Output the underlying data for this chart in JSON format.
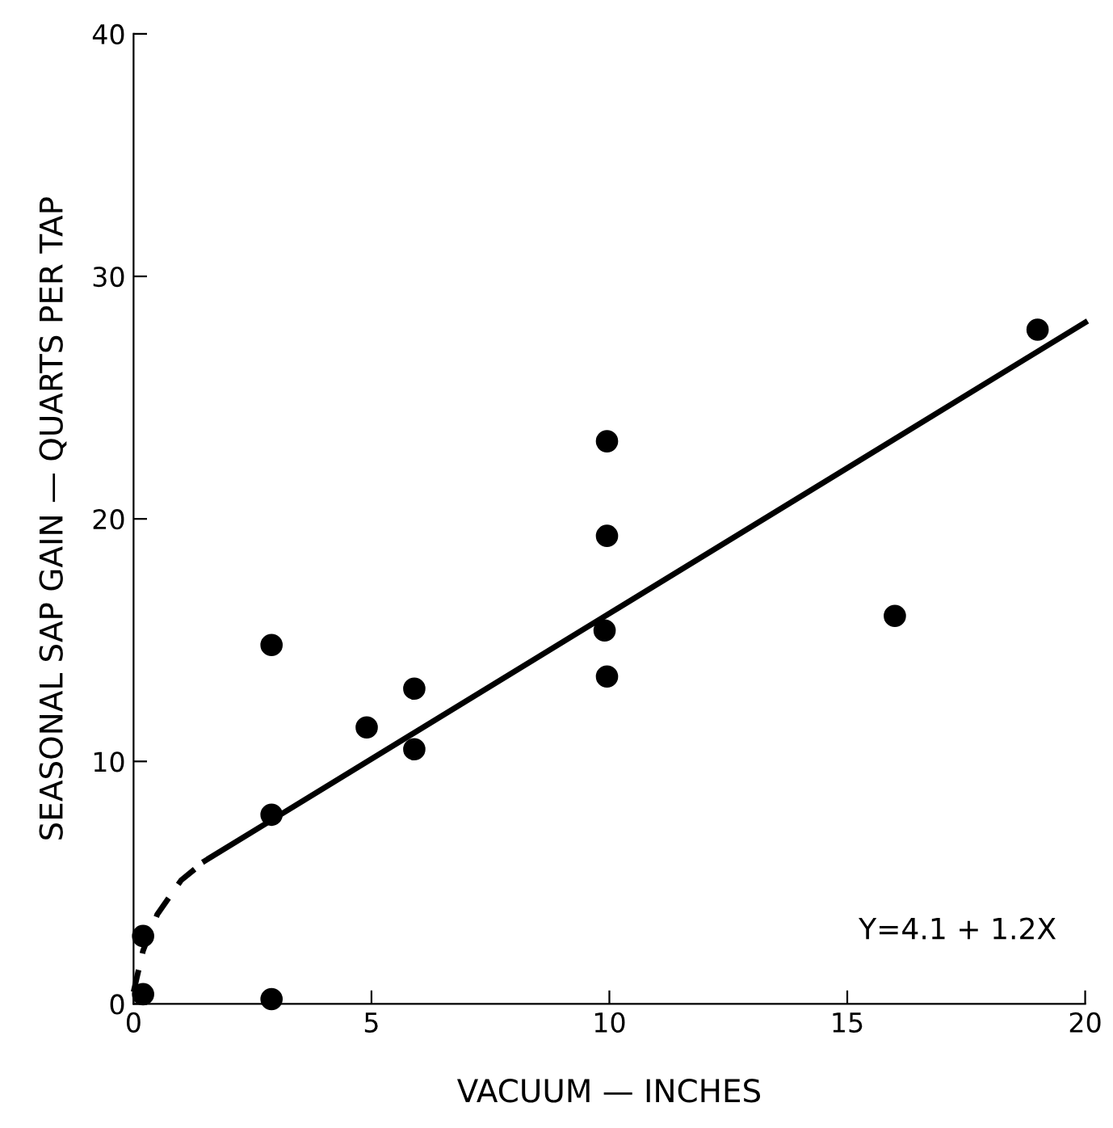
{
  "chart_data": {
    "type": "scatter",
    "xlabel": "VACUUM — INCHES",
    "ylabel": "SEASONAL SAP GAIN — QUARTS PER TAP",
    "xlim": [
      0,
      20
    ],
    "ylim": [
      0,
      40
    ],
    "xticks": [
      0,
      5,
      10,
      15,
      20
    ],
    "yticks": [
      0,
      10,
      20,
      30,
      40
    ],
    "grid": false,
    "marker": "circle",
    "series": [
      {
        "color": "#000000",
        "x": [
          0.2,
          0.2,
          2.9,
          2.9,
          2.9,
          4.9,
          5.9,
          5.9,
          9.95,
          9.95,
          9.9,
          9.95,
          16.0,
          19.0
        ],
        "values": [
          0.4,
          2.8,
          14.8,
          7.8,
          0.2,
          11.4,
          13.0,
          10.5,
          23.2,
          19.3,
          15.4,
          13.5,
          16.0,
          27.8
        ]
      },
      {
        "type": "line",
        "color": "#000000",
        "line_style": "dashed",
        "marker": "none",
        "x": [
          0,
          0.2,
          0.5,
          1.0,
          1.5
        ],
        "values": [
          0.5,
          2.2,
          3.7,
          5.1,
          5.9
        ]
      },
      {
        "type": "line",
        "color": "#000000",
        "line_style": "solid",
        "marker": "none",
        "x": [
          1.5,
          20
        ],
        "values": [
          5.9,
          28.1
        ]
      }
    ],
    "annotations": [
      "Y=4.1 + 1.2X"
    ]
  }
}
